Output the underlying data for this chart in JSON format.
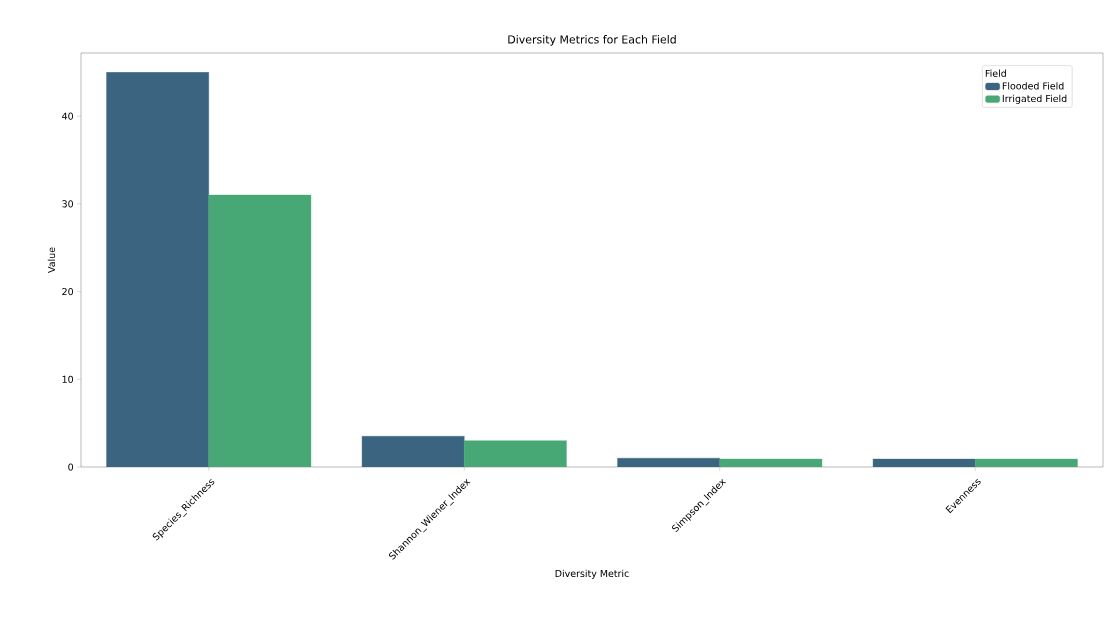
{
  "chart_data": {
    "type": "bar",
    "title": "Diversity Metrics for Each Field",
    "xlabel": "Diversity Metric",
    "ylabel": "Value",
    "legend_title": "Field",
    "categories": [
      "Species_Richness",
      "Shannon_Wiener_Index",
      "Simpson_Index",
      "Evenness"
    ],
    "series": [
      {
        "name": "Flooded Field",
        "color": "#3b6480",
        "values": [
          45,
          3.5,
          1.0,
          0.9
        ]
      },
      {
        "name": "Irrigated Field",
        "color": "#47a876",
        "values": [
          31,
          3.0,
          0.9,
          0.9
        ]
      }
    ],
    "ylim": [
      0,
      47.2
    ],
    "yticks": [
      0,
      10,
      20,
      30,
      40
    ],
    "legend": "top right"
  }
}
